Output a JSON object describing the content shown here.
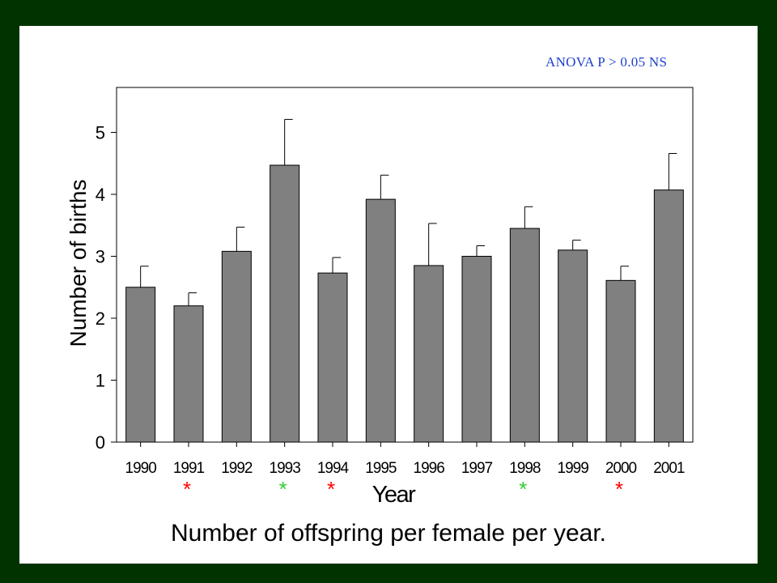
{
  "annotation": "ANOVA P > 0.05 NS",
  "caption": "Number of offspring per female per year.",
  "colors": {
    "frame": "#003300",
    "bar": "#808080",
    "annotation": "#1f3fcf",
    "marker_red": "#ff0000",
    "marker_green": "#33cc33"
  },
  "chart_data": {
    "type": "bar",
    "categories": [
      "1990",
      "1991",
      "1992",
      "1993",
      "1994",
      "1995",
      "1996",
      "1997",
      "1998",
      "1999",
      "2000",
      "2001"
    ],
    "values": [
      2.5,
      2.2,
      3.08,
      4.47,
      2.73,
      3.92,
      2.85,
      3.0,
      3.45,
      3.1,
      2.61,
      4.07
    ],
    "error_upper": [
      2.84,
      2.41,
      3.47,
      5.21,
      2.98,
      4.31,
      3.53,
      3.17,
      3.8,
      3.26,
      2.84,
      4.66
    ],
    "xlabel": "Year",
    "ylabel": "Number of births",
    "ylim": [
      0,
      5.8
    ],
    "yticks": [
      0,
      1,
      2,
      3,
      4,
      5
    ],
    "grid": false,
    "markers": [
      {
        "category": "1991",
        "symbol": "*",
        "color": "#ff0000"
      },
      {
        "category": "1993",
        "symbol": "*",
        "color": "#33cc33"
      },
      {
        "category": "1994",
        "symbol": "*",
        "color": "#ff0000"
      },
      {
        "category": "1998",
        "symbol": "*",
        "color": "#33cc33"
      },
      {
        "category": "2000",
        "symbol": "*",
        "color": "#ff0000"
      }
    ]
  }
}
